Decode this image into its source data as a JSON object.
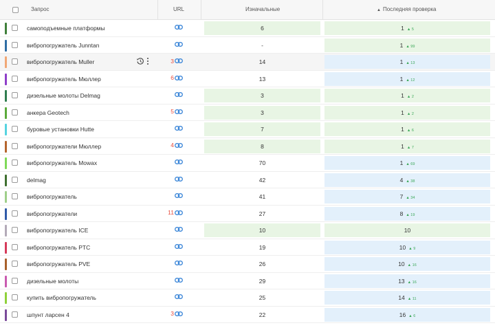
{
  "header": {
    "query": "Запрос",
    "url": "URL",
    "initial": "Изначальные",
    "last": "Последняя проверка",
    "sort_indicator": "▲"
  },
  "colors": {
    "improved": "#e8f5e4",
    "highlight": "#e3f0fb",
    "delta": "#3aa757",
    "url_count": "#e74c3c",
    "link_icon": "#3b86d8"
  },
  "rows": [
    {
      "query": "самоподъемные платформы",
      "url_count": "",
      "initial": "6",
      "last": "1",
      "delta": "5",
      "bar": "#3f7f3a",
      "init_bg": "green",
      "last_bg": "green"
    },
    {
      "query": "вибропогружатель Junntan",
      "url_count": "",
      "initial": "-",
      "last": "1",
      "delta": "99",
      "bar": "#2e6da4",
      "init_bg": "",
      "last_bg": "green"
    },
    {
      "query": "вибропогружатель Muller",
      "url_count": "3",
      "initial": "14",
      "last": "1",
      "delta": "13",
      "bar": "#f0a775",
      "init_bg": "",
      "last_bg": "blue",
      "highlight": true
    },
    {
      "query": "вибропогружатель Мюллер",
      "url_count": "6",
      "initial": "13",
      "last": "1",
      "delta": "12",
      "bar": "#8e3ec9",
      "init_bg": "",
      "last_bg": "blue"
    },
    {
      "query": "дизельные молоты Delmag",
      "url_count": "",
      "initial": "3",
      "last": "1",
      "delta": "2",
      "bar": "#2f7d4f",
      "init_bg": "green",
      "last_bg": "green"
    },
    {
      "query": "анкера Geotech",
      "url_count": "5",
      "initial": "3",
      "last": "1",
      "delta": "2",
      "bar": "#5aaa3a",
      "init_bg": "green",
      "last_bg": "green"
    },
    {
      "query": "буровые установки Hutte",
      "url_count": "",
      "initial": "7",
      "last": "1",
      "delta": "6",
      "bar": "#55d3e0",
      "init_bg": "green",
      "last_bg": "green"
    },
    {
      "query": "вибропогружатели Мюллер",
      "url_count": "4",
      "initial": "8",
      "last": "1",
      "delta": "7",
      "bar": "#b5652d",
      "init_bg": "green",
      "last_bg": "green"
    },
    {
      "query": "вибропогружатель Mowax",
      "url_count": "",
      "initial": "70",
      "last": "1",
      "delta": "69",
      "bar": "#7ed957",
      "init_bg": "",
      "last_bg": "blue"
    },
    {
      "query": "delmag",
      "url_count": "",
      "initial": "42",
      "last": "4",
      "delta": "38",
      "bar": "#3f6f2f",
      "init_bg": "",
      "last_bg": "blue"
    },
    {
      "query": "вибропогружатель",
      "url_count": "",
      "initial": "41",
      "last": "7",
      "delta": "34",
      "bar": "#9fcf8a",
      "init_bg": "",
      "last_bg": "blue"
    },
    {
      "query": "вибропогружатели",
      "url_count": "11",
      "initial": "27",
      "last": "8",
      "delta": "19",
      "bar": "#2f5aa8",
      "init_bg": "",
      "last_bg": "blue"
    },
    {
      "query": "вибропогружатель ICE",
      "url_count": "",
      "initial": "10",
      "last": "10",
      "delta": "",
      "bar": "#b3aab8",
      "init_bg": "green",
      "last_bg": "green"
    },
    {
      "query": "вибропогружатель PTC",
      "url_count": "",
      "initial": "19",
      "last": "10",
      "delta": "9",
      "bar": "#d63a5a",
      "init_bg": "",
      "last_bg": "blue"
    },
    {
      "query": "вибропогружатель PVE",
      "url_count": "",
      "initial": "26",
      "last": "10",
      "delta": "16",
      "bar": "#a8602a",
      "init_bg": "",
      "last_bg": "blue"
    },
    {
      "query": "дизельные молоты",
      "url_count": "",
      "initial": "29",
      "last": "13",
      "delta": "16",
      "bar": "#c95ab0",
      "init_bg": "",
      "last_bg": "blue"
    },
    {
      "query": "купить вибропогружатель",
      "url_count": "",
      "initial": "25",
      "last": "14",
      "delta": "11",
      "bar": "#8fd13a",
      "init_bg": "",
      "last_bg": "blue"
    },
    {
      "query": "шпунт ларсен 4",
      "url_count": "3",
      "initial": "22",
      "last": "16",
      "delta": "6",
      "bar": "#7a4a9a",
      "init_bg": "",
      "last_bg": "blue"
    }
  ]
}
